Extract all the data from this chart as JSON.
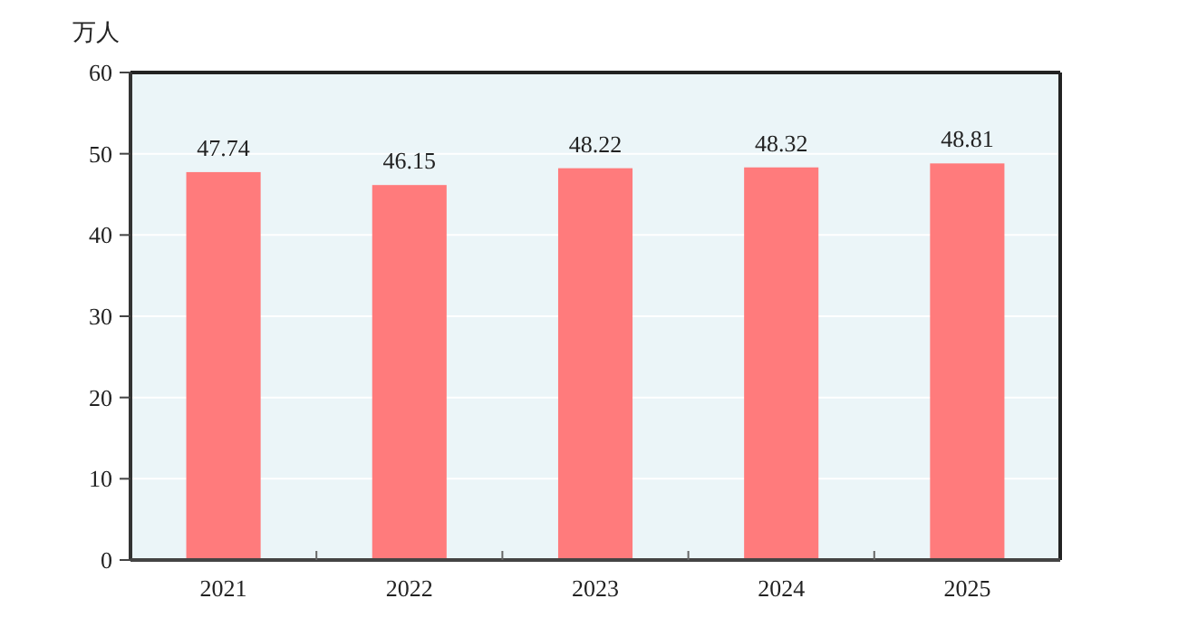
{
  "chart_data": {
    "type": "bar",
    "ylabel": "万人",
    "categories": [
      "2021",
      "2022",
      "2023",
      "2024",
      "2025"
    ],
    "values": [
      47.74,
      46.15,
      48.22,
      48.32,
      48.81
    ],
    "color": "#ff7b7c",
    "ylim": [
      0,
      60
    ],
    "yticks": [
      0,
      10,
      20,
      30,
      40,
      50,
      60
    ],
    "grid": "y",
    "data_labels": true
  }
}
